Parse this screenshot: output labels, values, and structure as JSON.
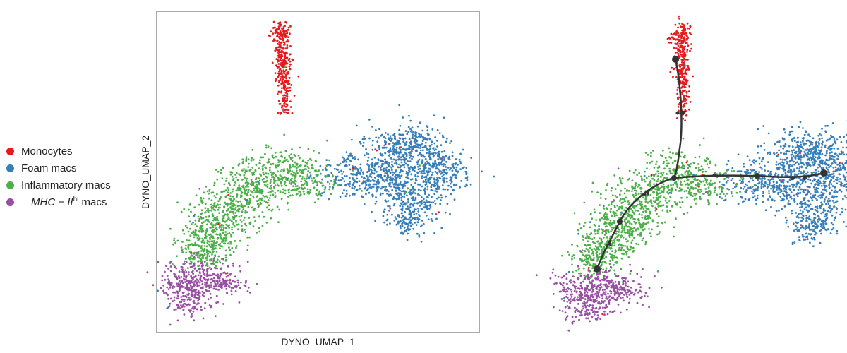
{
  "chart_data": [
    {
      "type": "scatter",
      "panel": "cell-type-embedding",
      "title": "",
      "xlabel": "DYNO_UMAP_1",
      "ylabel": "DYNO_UMAP_2",
      "grid": false,
      "legend_position": "left",
      "series": [
        {
          "name": "Monocytes",
          "color": "#e41a1c"
        },
        {
          "name": "Foam macs",
          "color": "#377eb8"
        },
        {
          "name": "Inflammatory macs",
          "color": "#4daf4a"
        },
        {
          "name": "MHC-II hi macs",
          "color": "#984ea3"
        }
      ]
    },
    {
      "type": "scatter",
      "panel": "trajectory-overlay",
      "title": "",
      "xlabel": "",
      "ylabel": "",
      "grid": false,
      "trajectory_color": "#333333"
    }
  ],
  "legend": {
    "items": [
      {
        "label": "Monocytes",
        "color": "#e41a1c"
      },
      {
        "label": "Foam macs",
        "color": "#377eb8"
      },
      {
        "label": "Inflammatory macs",
        "color": "#4daf4a"
      }
    ],
    "mhc": {
      "main": "MHC − II",
      "sup": "hi",
      "suffix": " macs",
      "color": "#984ea3"
    }
  }
}
